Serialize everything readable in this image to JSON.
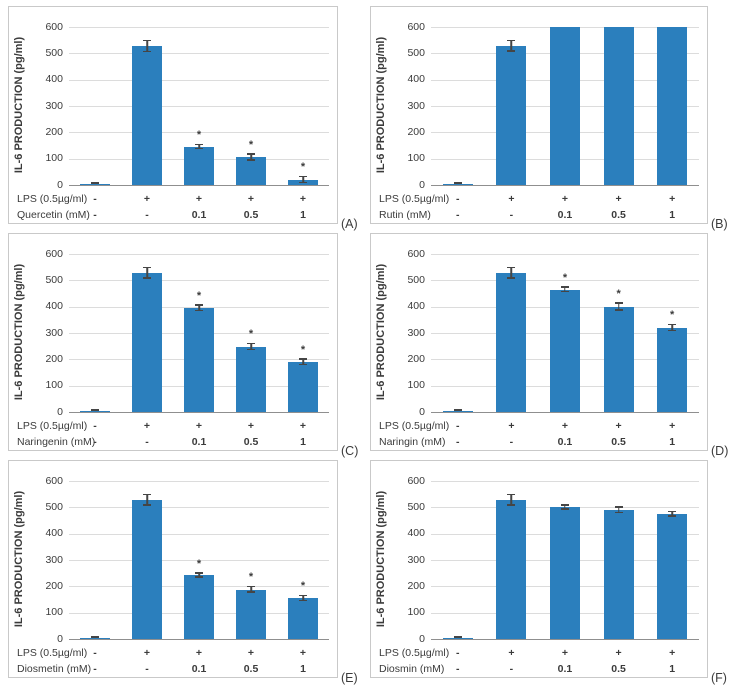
{
  "figure": {
    "bar_color": "#2b7fbd",
    "error_color": "#454545",
    "sig_marker": "*",
    "panel_border_color": "#c9c9c9",
    "gridline_color": "#dcdcdc",
    "axis_color": "#8f8f8f"
  },
  "chart_data": [
    {
      "id": "A",
      "label": "(A)",
      "type": "bar",
      "ylabel": "IL-6 PRODUCTION (pg/ml)",
      "ylim": [
        0,
        600
      ],
      "ytick_step": 100,
      "grid": true,
      "x_rows": [
        {
          "label": "LPS (0.5µg/ml)",
          "values": [
            "-",
            "+",
            "+",
            "+",
            "+"
          ]
        },
        {
          "label": "Quercetin (mM)",
          "values": [
            "-",
            "-",
            "0.1",
            "0.5",
            "1"
          ]
        }
      ],
      "values": [
        5,
        527,
        145,
        105,
        20
      ],
      "errors": [
        3,
        22,
        10,
        13,
        13
      ],
      "significant": [
        false,
        false,
        true,
        true,
        true
      ]
    },
    {
      "id": "B",
      "label": "(B)",
      "type": "bar",
      "ylabel": "IL-6 PRODUCTION (pg/ml)",
      "ylim": [
        0,
        600
      ],
      "ytick_step": 100,
      "grid": true,
      "x_rows": [
        {
          "label": "LPS (0.5µg/ml)",
          "values": [
            "-",
            "+",
            "+",
            "+",
            "+"
          ]
        },
        {
          "label": "Rutin (mM)",
          "values": [
            "-",
            "-",
            "0.1",
            "0.5",
            "1"
          ]
        }
      ],
      "values": [
        5,
        528,
        600,
        600,
        600
      ],
      "errors": [
        3,
        22,
        0,
        0,
        0
      ],
      "significant": [
        false,
        false,
        false,
        false,
        false
      ]
    },
    {
      "id": "C",
      "label": "(C)",
      "type": "bar",
      "ylabel": "IL-6 PRODUCTION (pg/ml)",
      "ylim": [
        0,
        600
      ],
      "ytick_step": 100,
      "grid": true,
      "x_rows": [
        {
          "label": "LPS (0.5µg/ml)",
          "values": [
            "-",
            "+",
            "+",
            "+",
            "+"
          ]
        },
        {
          "label": "Naringenin (mM)",
          "values": [
            "-",
            "-",
            "0.1",
            "0.5",
            "1"
          ]
        }
      ],
      "values": [
        5,
        528,
        395,
        248,
        190
      ],
      "errors": [
        3,
        22,
        12,
        13,
        13
      ],
      "significant": [
        false,
        false,
        true,
        true,
        true
      ]
    },
    {
      "id": "D",
      "label": "(D)",
      "type": "bar",
      "ylabel": "IL-6 PRODUCTION (pg/ml)",
      "ylim": [
        0,
        600
      ],
      "ytick_step": 100,
      "grid": true,
      "x_rows": [
        {
          "label": "LPS (0.5µg/ml)",
          "values": [
            "-",
            "+",
            "+",
            "+",
            "+"
          ]
        },
        {
          "label": "Naringin (mM)",
          "values": [
            "-",
            "-",
            "0.1",
            "0.5",
            "1"
          ]
        }
      ],
      "values": [
        5,
        528,
        465,
        400,
        320
      ],
      "errors": [
        3,
        22,
        10,
        15,
        13
      ],
      "significant": [
        false,
        false,
        true,
        true,
        true
      ]
    },
    {
      "id": "E",
      "label": "(E)",
      "type": "bar",
      "ylabel": "IL-6 PRODUCTION (pg/ml)",
      "ylim": [
        0,
        600
      ],
      "ytick_step": 100,
      "grid": true,
      "x_rows": [
        {
          "label": "LPS (0.5µg/ml)",
          "values": [
            "-",
            "+",
            "+",
            "+",
            "+"
          ]
        },
        {
          "label": "Diosmetin (mM)",
          "values": [
            "-",
            "-",
            "0.1",
            "0.5",
            "1"
          ]
        }
      ],
      "values": [
        5,
        528,
        242,
        188,
        155
      ],
      "errors": [
        3,
        22,
        10,
        13,
        12
      ],
      "significant": [
        false,
        false,
        true,
        true,
        true
      ]
    },
    {
      "id": "F",
      "label": "(F)",
      "type": "bar",
      "ylabel": "IL-6 PRODUCTION (pg/ml)",
      "ylim": [
        0,
        600
      ],
      "ytick_step": 100,
      "grid": true,
      "x_rows": [
        {
          "label": "LPS (0.5µg/ml)",
          "values": [
            "-",
            "+",
            "+",
            "+",
            "+"
          ]
        },
        {
          "label": "Diosmin (mM)",
          "values": [
            "-",
            "-",
            "0.1",
            "0.5",
            "1"
          ]
        }
      ],
      "values": [
        5,
        528,
        500,
        490,
        475
      ],
      "errors": [
        3,
        22,
        10,
        13,
        10
      ],
      "significant": [
        false,
        false,
        false,
        false,
        false
      ]
    }
  ]
}
